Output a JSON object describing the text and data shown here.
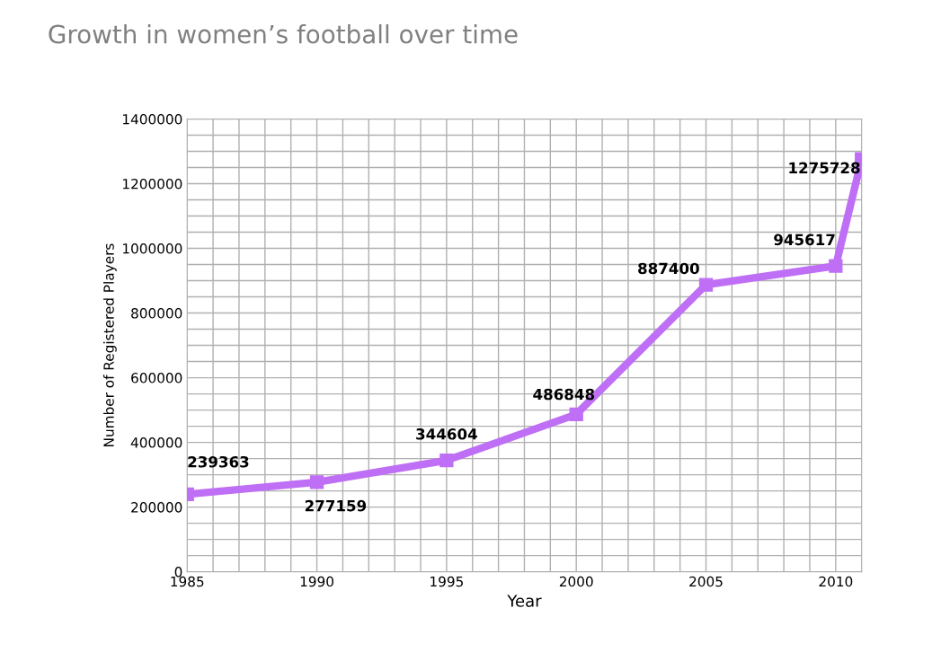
{
  "chart_data": {
    "type": "line",
    "title": "Growth in women’s football over time",
    "xlabel": "Year",
    "ylabel": "Number of Registered Players",
    "x": [
      1985,
      1990,
      1995,
      2000,
      2005,
      2010,
      2011
    ],
    "series": [
      {
        "color": "#bf6ff5",
        "values": [
          239363,
          277159,
          344604,
          486848,
          887400,
          945617,
          1275728
        ]
      }
    ],
    "data_labels": true,
    "marker": "square",
    "line_style": "solid",
    "grid": true,
    "legend": false,
    "xlim": [
      1985,
      2011
    ],
    "xticks": [
      1985,
      {
        "value": 1986,
        "label": null
      },
      {
        "value": 1987,
        "label": null
      },
      {
        "value": 1988,
        "label": null
      },
      {
        "value": 1989,
        "label": null
      },
      1990,
      {
        "value": 1991,
        "label": null
      },
      {
        "value": 1992,
        "label": null
      },
      {
        "value": 1993,
        "label": null
      },
      {
        "value": 1994,
        "label": null
      },
      1995,
      {
        "value": 1996,
        "label": null
      },
      {
        "value": 1997,
        "label": null
      },
      {
        "value": 1998,
        "label": null
      },
      {
        "value": 1999,
        "label": null
      },
      2000,
      {
        "value": 2001,
        "label": null
      },
      {
        "value": 2002,
        "label": null
      },
      {
        "value": 2003,
        "label": null
      },
      {
        "value": 2004,
        "label": null
      },
      2005,
      {
        "value": 2006,
        "label": null
      },
      {
        "value": 2007,
        "label": null
      },
      {
        "value": 2008,
        "label": null
      },
      {
        "value": 2009,
        "label": null
      },
      2010,
      {
        "value": 2011,
        "label": null
      }
    ],
    "ylim": [
      0,
      1400000
    ],
    "yticks": [
      0,
      {
        "value": 50000,
        "label": null
      },
      {
        "value": 100000,
        "label": null
      },
      {
        "value": 150000,
        "label": null
      },
      200000,
      {
        "value": 250000,
        "label": null
      },
      {
        "value": 300000,
        "label": null
      },
      {
        "value": 350000,
        "label": null
      },
      400000,
      {
        "value": 450000,
        "label": null
      },
      {
        "value": 500000,
        "label": null
      },
      {
        "value": 550000,
        "label": null
      },
      600000,
      {
        "value": 650000,
        "label": null
      },
      {
        "value": 700000,
        "label": null
      },
      {
        "value": 750000,
        "label": null
      },
      800000,
      {
        "value": 850000,
        "label": null
      },
      {
        "value": 900000,
        "label": null
      },
      {
        "value": 950000,
        "label": null
      },
      1000000,
      {
        "value": 1050000,
        "label": null
      },
      {
        "value": 1100000,
        "label": null
      },
      {
        "value": 1150000,
        "label": null
      },
      1200000,
      {
        "value": 1250000,
        "label": null
      },
      {
        "value": 1300000,
        "label": null
      },
      {
        "value": 1350000,
        "label": null
      },
      1400000
    ]
  }
}
